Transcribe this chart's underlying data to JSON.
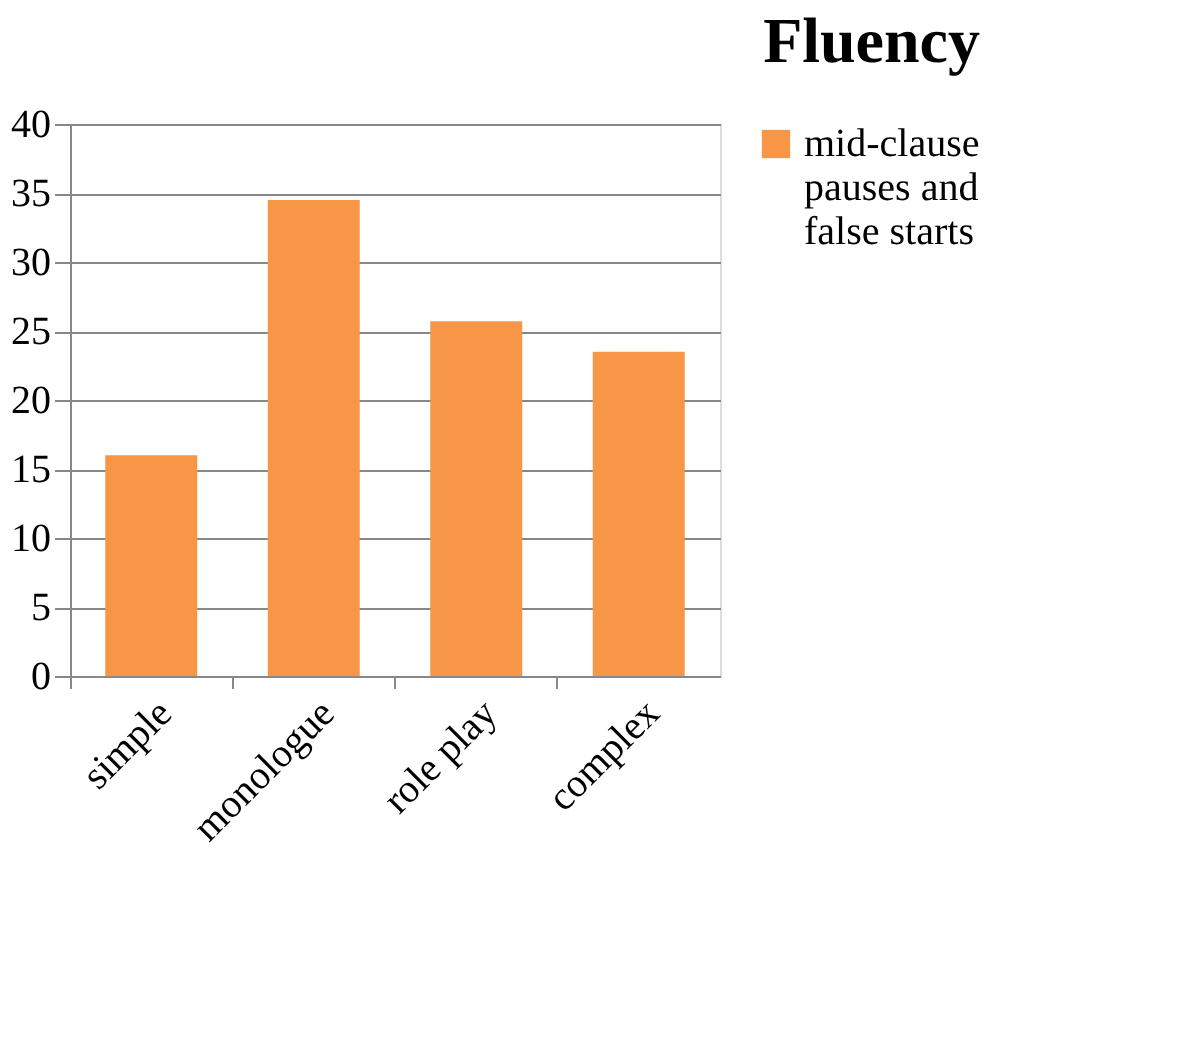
{
  "chart_data": {
    "type": "bar",
    "title": "Fluency",
    "categories": [
      "simple",
      "monologue",
      "role play",
      "complex"
    ],
    "series": [
      {
        "name": "mid-clause pauses and false starts",
        "color": "#f79646",
        "values": [
          16,
          34.5,
          25.7,
          23.5
        ]
      }
    ],
    "ylim": [
      0,
      40
    ],
    "yticks": [
      0,
      5,
      10,
      15,
      20,
      25,
      30,
      35,
      40
    ],
    "grid": "y",
    "legend": "right"
  }
}
